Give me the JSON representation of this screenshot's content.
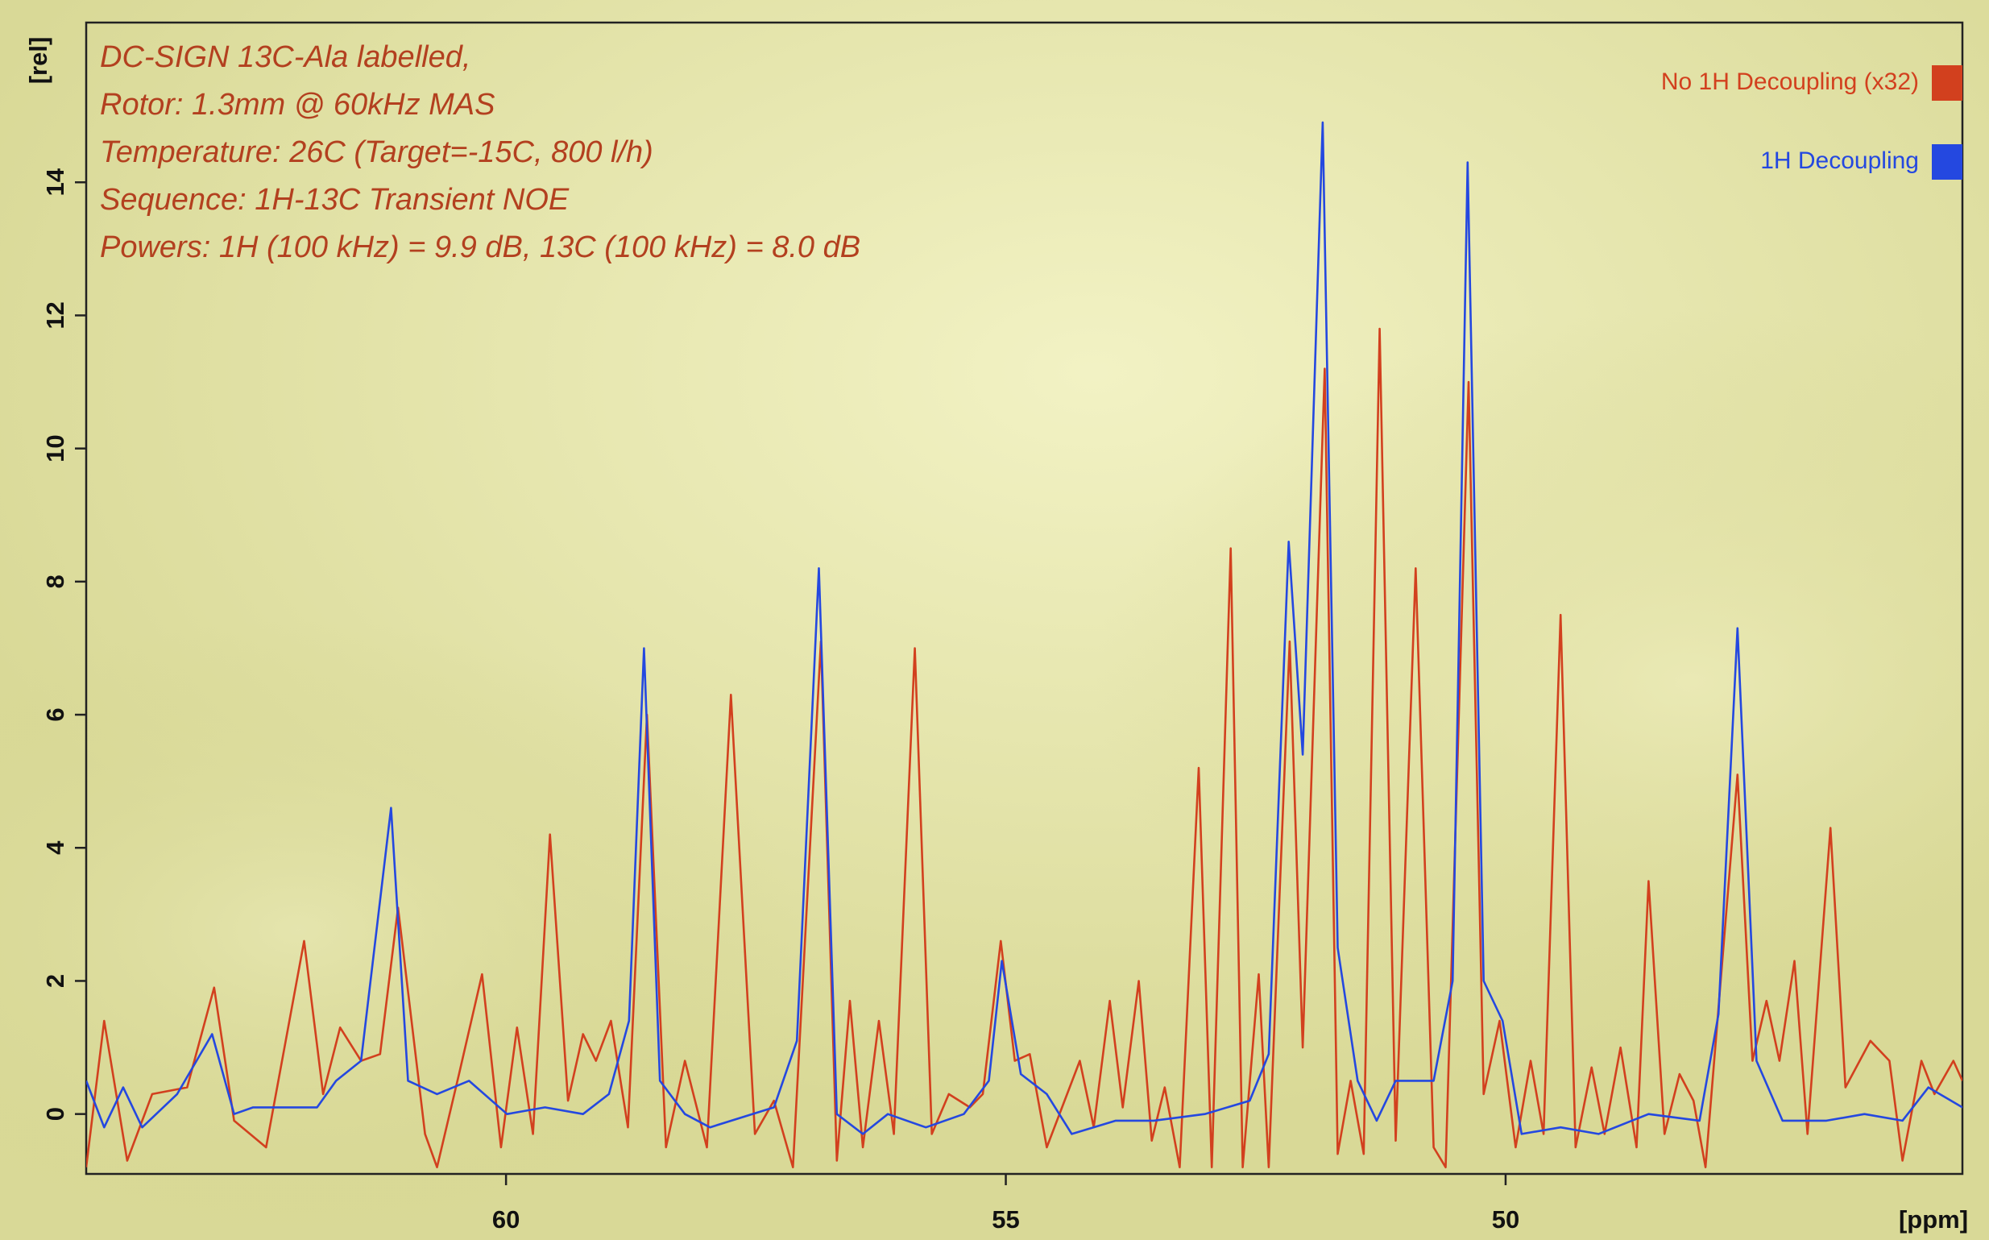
{
  "chart_data": {
    "type": "line",
    "annotations": [
      "DC-SIGN 13C-Ala labelled,",
      "Rotor: 1.3mm @ 60kHz MAS",
      "Temperature: 26C (Target=-15C, 800 l/h)",
      "Sequence: 1H-13C Transient NOE",
      "Powers: 1H (100 kHz) = 9.9 dB, 13C (100 kHz) =  8.0 dB"
    ],
    "x_label": "[ppm]",
    "y_label": "[rel]",
    "xlim": [
      64.2,
      45.43
    ],
    "xticks": [
      60,
      55,
      50
    ],
    "ylim": [
      -0.9,
      16.4
    ],
    "yticks": [
      0,
      2,
      4,
      6,
      8,
      10,
      12,
      14
    ],
    "legend": "top-right",
    "series": [
      {
        "name": "No 1H Decoupling (x32)",
        "color": "#d2401e",
        "x": [
          64.2,
          64.02,
          63.79,
          63.54,
          63.19,
          62.92,
          62.72,
          62.4,
          62.02,
          61.83,
          61.66,
          61.45,
          61.26,
          61.08,
          60.81,
          60.69,
          60.47,
          60.24,
          60.05,
          59.89,
          59.73,
          59.56,
          59.38,
          59.23,
          59.1,
          58.95,
          58.78,
          58.59,
          58.4,
          58.21,
          57.99,
          57.75,
          57.51,
          57.32,
          57.13,
          56.85,
          56.69,
          56.56,
          56.43,
          56.27,
          56.12,
          55.91,
          55.74,
          55.57,
          55.36,
          55.23,
          55.05,
          54.91,
          54.76,
          54.59,
          54.26,
          54.12,
          53.96,
          53.83,
          53.67,
          53.54,
          53.41,
          53.26,
          53.07,
          52.94,
          52.75,
          52.63,
          52.47,
          52.37,
          52.16,
          52.03,
          51.81,
          51.68,
          51.55,
          51.42,
          51.26,
          51.1,
          50.9,
          50.72,
          50.6,
          50.37,
          50.22,
          50.06,
          49.9,
          49.75,
          49.62,
          49.45,
          49.3,
          49.14,
          49.01,
          48.85,
          48.69,
          48.57,
          48.41,
          48.26,
          48.12,
          48.0,
          47.68,
          47.53,
          47.39,
          47.26,
          47.11,
          46.98,
          46.75,
          46.6,
          46.35,
          46.16,
          46.03,
          45.84,
          45.71,
          45.52,
          45.43
        ],
        "values": [
          -0.8,
          1.4,
          -0.7,
          0.3,
          0.4,
          1.9,
          -0.1,
          -0.5,
          2.6,
          0.3,
          1.3,
          0.8,
          0.9,
          3.1,
          -0.3,
          -0.8,
          0.6,
          2.1,
          -0.5,
          1.3,
          -0.3,
          4.2,
          0.2,
          1.2,
          0.8,
          1.4,
          -0.2,
          6.0,
          -0.5,
          0.8,
          -0.5,
          6.3,
          -0.3,
          0.2,
          -0.8,
          7.1,
          -0.7,
          1.7,
          -0.5,
          1.4,
          -0.3,
          7.0,
          -0.3,
          0.3,
          0.1,
          0.3,
          2.6,
          0.8,
          0.9,
          -0.5,
          0.8,
          -0.2,
          1.7,
          0.1,
          2.0,
          -0.4,
          0.4,
          -0.8,
          5.2,
          -0.8,
          8.5,
          -0.8,
          2.1,
          -0.8,
          7.1,
          1.0,
          11.2,
          -0.6,
          0.5,
          -0.6,
          11.8,
          -0.4,
          8.2,
          -0.5,
          -0.8,
          11.0,
          0.3,
          1.4,
          -0.5,
          0.8,
          -0.3,
          7.5,
          -0.5,
          0.7,
          -0.3,
          1.0,
          -0.5,
          3.5,
          -0.3,
          0.6,
          0.2,
          -0.8,
          5.1,
          0.8,
          1.7,
          0.8,
          2.3,
          -0.3,
          4.3,
          0.4,
          1.1,
          0.8,
          -0.7,
          0.8,
          0.3,
          0.8,
          0.5
        ]
      },
      {
        "name": "1H Decoupling",
        "color": "#2448e0",
        "x": [
          64.2,
          64.02,
          63.83,
          63.64,
          63.29,
          62.94,
          62.72,
          62.53,
          61.89,
          61.7,
          61.45,
          61.15,
          60.98,
          60.69,
          60.37,
          59.99,
          59.61,
          59.23,
          58.97,
          58.77,
          58.62,
          58.46,
          58.21,
          57.96,
          57.32,
          57.09,
          56.87,
          56.69,
          56.43,
          56.18,
          55.8,
          55.42,
          55.17,
          55.04,
          54.85,
          54.59,
          54.34,
          53.9,
          53.52,
          53.01,
          52.56,
          52.37,
          52.17,
          52.03,
          51.83,
          51.68,
          51.48,
          51.29,
          51.1,
          50.72,
          50.53,
          50.38,
          50.22,
          50.03,
          49.84,
          49.45,
          49.07,
          48.57,
          48.06,
          47.87,
          47.68,
          47.49,
          47.23,
          46.79,
          46.41,
          46.03,
          45.77,
          45.43
        ],
        "values": [
          0.5,
          -0.2,
          0.4,
          -0.2,
          0.3,
          1.2,
          0.0,
          0.1,
          0.1,
          0.5,
          0.8,
          4.6,
          0.5,
          0.3,
          0.5,
          0.0,
          0.1,
          0.0,
          0.3,
          1.4,
          7.0,
          0.5,
          0.0,
          -0.2,
          0.1,
          1.1,
          8.2,
          0.0,
          -0.3,
          0.0,
          -0.2,
          0.0,
          0.5,
          2.3,
          0.6,
          0.3,
          -0.3,
          -0.1,
          -0.1,
          0.0,
          0.2,
          0.9,
          8.6,
          5.4,
          14.9,
          2.5,
          0.5,
          -0.1,
          0.5,
          0.5,
          2.0,
          14.3,
          2.0,
          1.4,
          -0.3,
          -0.2,
          -0.3,
          0.0,
          -0.1,
          1.5,
          7.3,
          0.8,
          -0.1,
          -0.1,
          0.0,
          -0.1,
          0.4,
          0.1
        ]
      }
    ]
  }
}
